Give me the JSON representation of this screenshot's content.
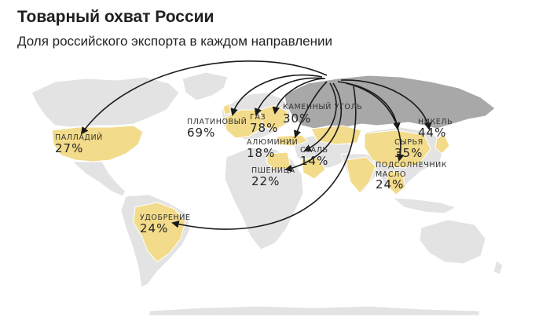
{
  "header": {
    "title": "Товарный охват России",
    "subtitle": "Доля российского экспорта в каждом направлении"
  },
  "colors": {
    "land": "#e3e3e3",
    "russia": "#a8a8a8",
    "highlight": "#f2db8a",
    "border": "#ffffff",
    "arrow": "#1a1a1a"
  },
  "labels": [
    {
      "id": "palladium",
      "name": "ПАЛЛАДИЙ",
      "value": "27%"
    },
    {
      "id": "platinum",
      "name": "ПЛАТИНОВЫЙ",
      "value": "69%"
    },
    {
      "id": "gas",
      "name": "ГАЗ",
      "value": "78%"
    },
    {
      "id": "coal",
      "name": "КАМЕННЫЙ  УГОЛЬ",
      "value": "30%"
    },
    {
      "id": "aluminium",
      "name": "АЛЮМИНИЙ",
      "value": "18%"
    },
    {
      "id": "steel",
      "name": "СТАЛЬ",
      "value": "14%"
    },
    {
      "id": "wheat",
      "name": "ПШЕНИЦА",
      "value": "22%"
    },
    {
      "id": "nickel",
      "name": "НИКЕЛЬ",
      "value": "44%"
    },
    {
      "id": "raw",
      "name": "СЫРЬЯ",
      "value": "35%"
    },
    {
      "id": "sunflower",
      "name": "ПОДСОЛНЕЧНИК",
      "name2": "МАСЛО",
      "value": "24%"
    },
    {
      "id": "fertilizer",
      "name": "УДОБРЕНИЕ",
      "value": "24%"
    }
  ]
}
